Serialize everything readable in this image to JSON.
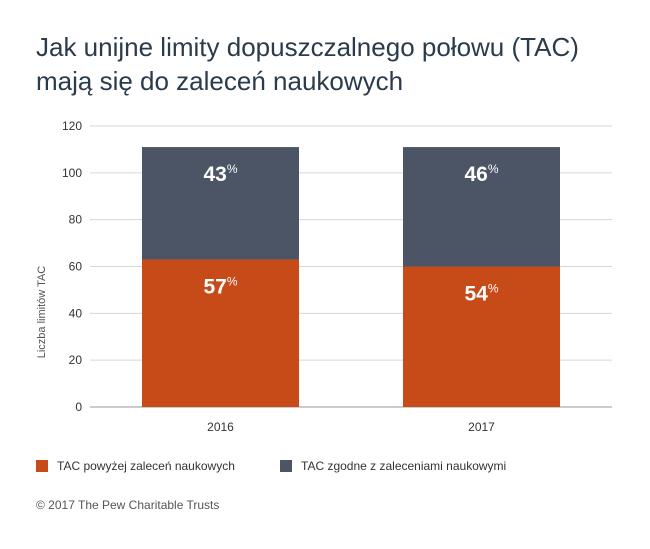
{
  "title_lines": [
    "Jak unijne limity dopuszczalnego połowu (TAC)",
    "mają się do zaleceń naukowych"
  ],
  "chart_data": {
    "type": "bar",
    "stacked": true,
    "categories": [
      "2016",
      "2017"
    ],
    "series": [
      {
        "name": "TAC powyżej zaleceń naukowych",
        "values": [
          63,
          60
        ],
        "percent_labels": [
          "57",
          "54"
        ],
        "color": "#c64b18"
      },
      {
        "name": "TAC zgodne z zaleceniami naukowymi",
        "values": [
          48,
          51
        ],
        "percent_labels": [
          "43",
          "46"
        ],
        "color": "#4b5565"
      }
    ],
    "ylabel": "Liczba limitów TAC",
    "ylim": [
      0,
      120
    ],
    "yticks": [
      0,
      20,
      40,
      60,
      80,
      100,
      120
    ],
    "percent_symbol": "%",
    "grid": true,
    "legend_position": "bottom-left"
  },
  "legend": [
    {
      "label": "TAC powyżej zaleceń naukowych",
      "color": "#c64b18"
    },
    {
      "label": "TAC zgodne z zaleceniami naukowymi",
      "color": "#4b5565"
    }
  ],
  "footer": "© 2017 The Pew Charitable Trusts"
}
